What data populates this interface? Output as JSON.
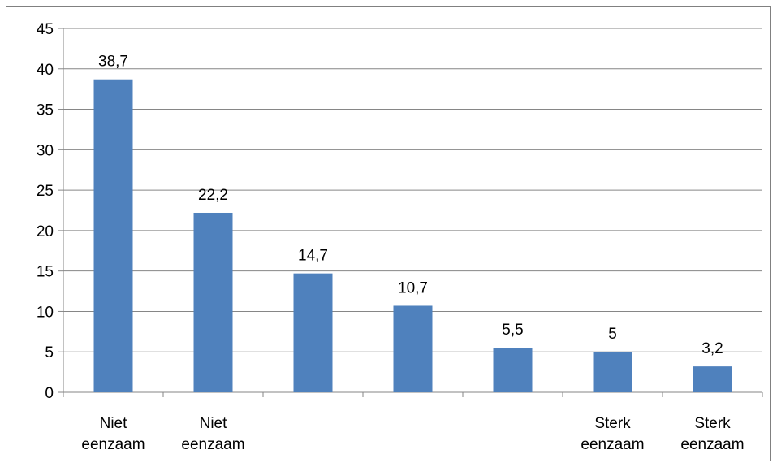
{
  "chart_data": {
    "type": "bar",
    "categories": [
      [
        "Niet",
        "eenzaam"
      ],
      [
        "Niet",
        "eenzaam"
      ],
      [],
      [],
      [],
      [
        "Sterk",
        "eenzaam"
      ],
      [
        "Sterk",
        "eenzaam"
      ]
    ],
    "values": [
      38.7,
      22.2,
      14.7,
      10.7,
      5.5,
      5,
      3.2
    ],
    "data_labels": [
      "38,7",
      "22,2",
      "14,7",
      "10,7",
      "5,5",
      "5",
      "3,2"
    ],
    "y_ticks": [
      "0",
      "5",
      "10",
      "15",
      "20",
      "25",
      "30",
      "35",
      "40",
      "45"
    ],
    "ylim": [
      0,
      45
    ],
    "title": "",
    "xlabel": "",
    "ylabel": "",
    "grid": true,
    "legend": "none",
    "bar_color": "#4F81BD",
    "grid_color": "#868686"
  }
}
